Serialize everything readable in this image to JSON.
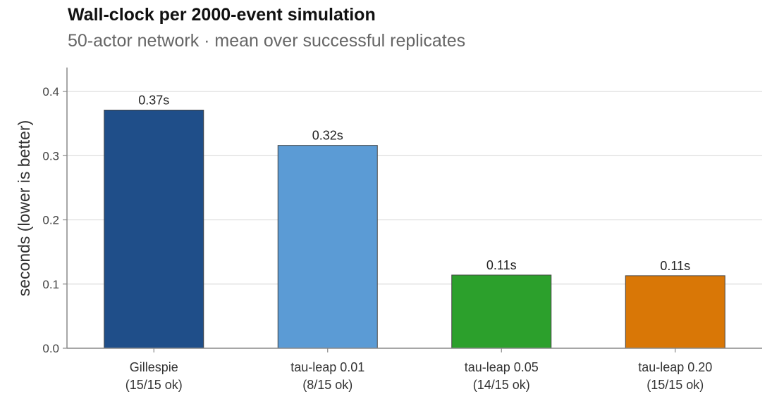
{
  "chart_data": {
    "type": "bar",
    "title": "Wall-clock per 2000-event simulation",
    "subtitle": "50-actor network · mean over successful replicates",
    "ylabel": "seconds (lower is better)",
    "xlabel": "",
    "ylim": [
      0,
      0.44
    ],
    "yticks": [
      "0.0",
      "0.1",
      "0.2",
      "0.3",
      "0.4"
    ],
    "grid": true,
    "categories": [
      {
        "name": "Gillespie",
        "note": "(15/15 ok)"
      },
      {
        "name": "tau-leap 0.01",
        "note": "(8/15 ok)"
      },
      {
        "name": "tau-leap 0.05",
        "note": "(14/15 ok)"
      },
      {
        "name": "tau-leap 0.20",
        "note": "(15/15 ok)"
      }
    ],
    "values": [
      0.371,
      0.316,
      0.114,
      0.113
    ],
    "labels": [
      "0.37s",
      "0.32s",
      "0.11s",
      "0.11s"
    ],
    "colors": [
      "#1f4e89",
      "#5b9bd5",
      "#2ca02c",
      "#d97706"
    ]
  }
}
